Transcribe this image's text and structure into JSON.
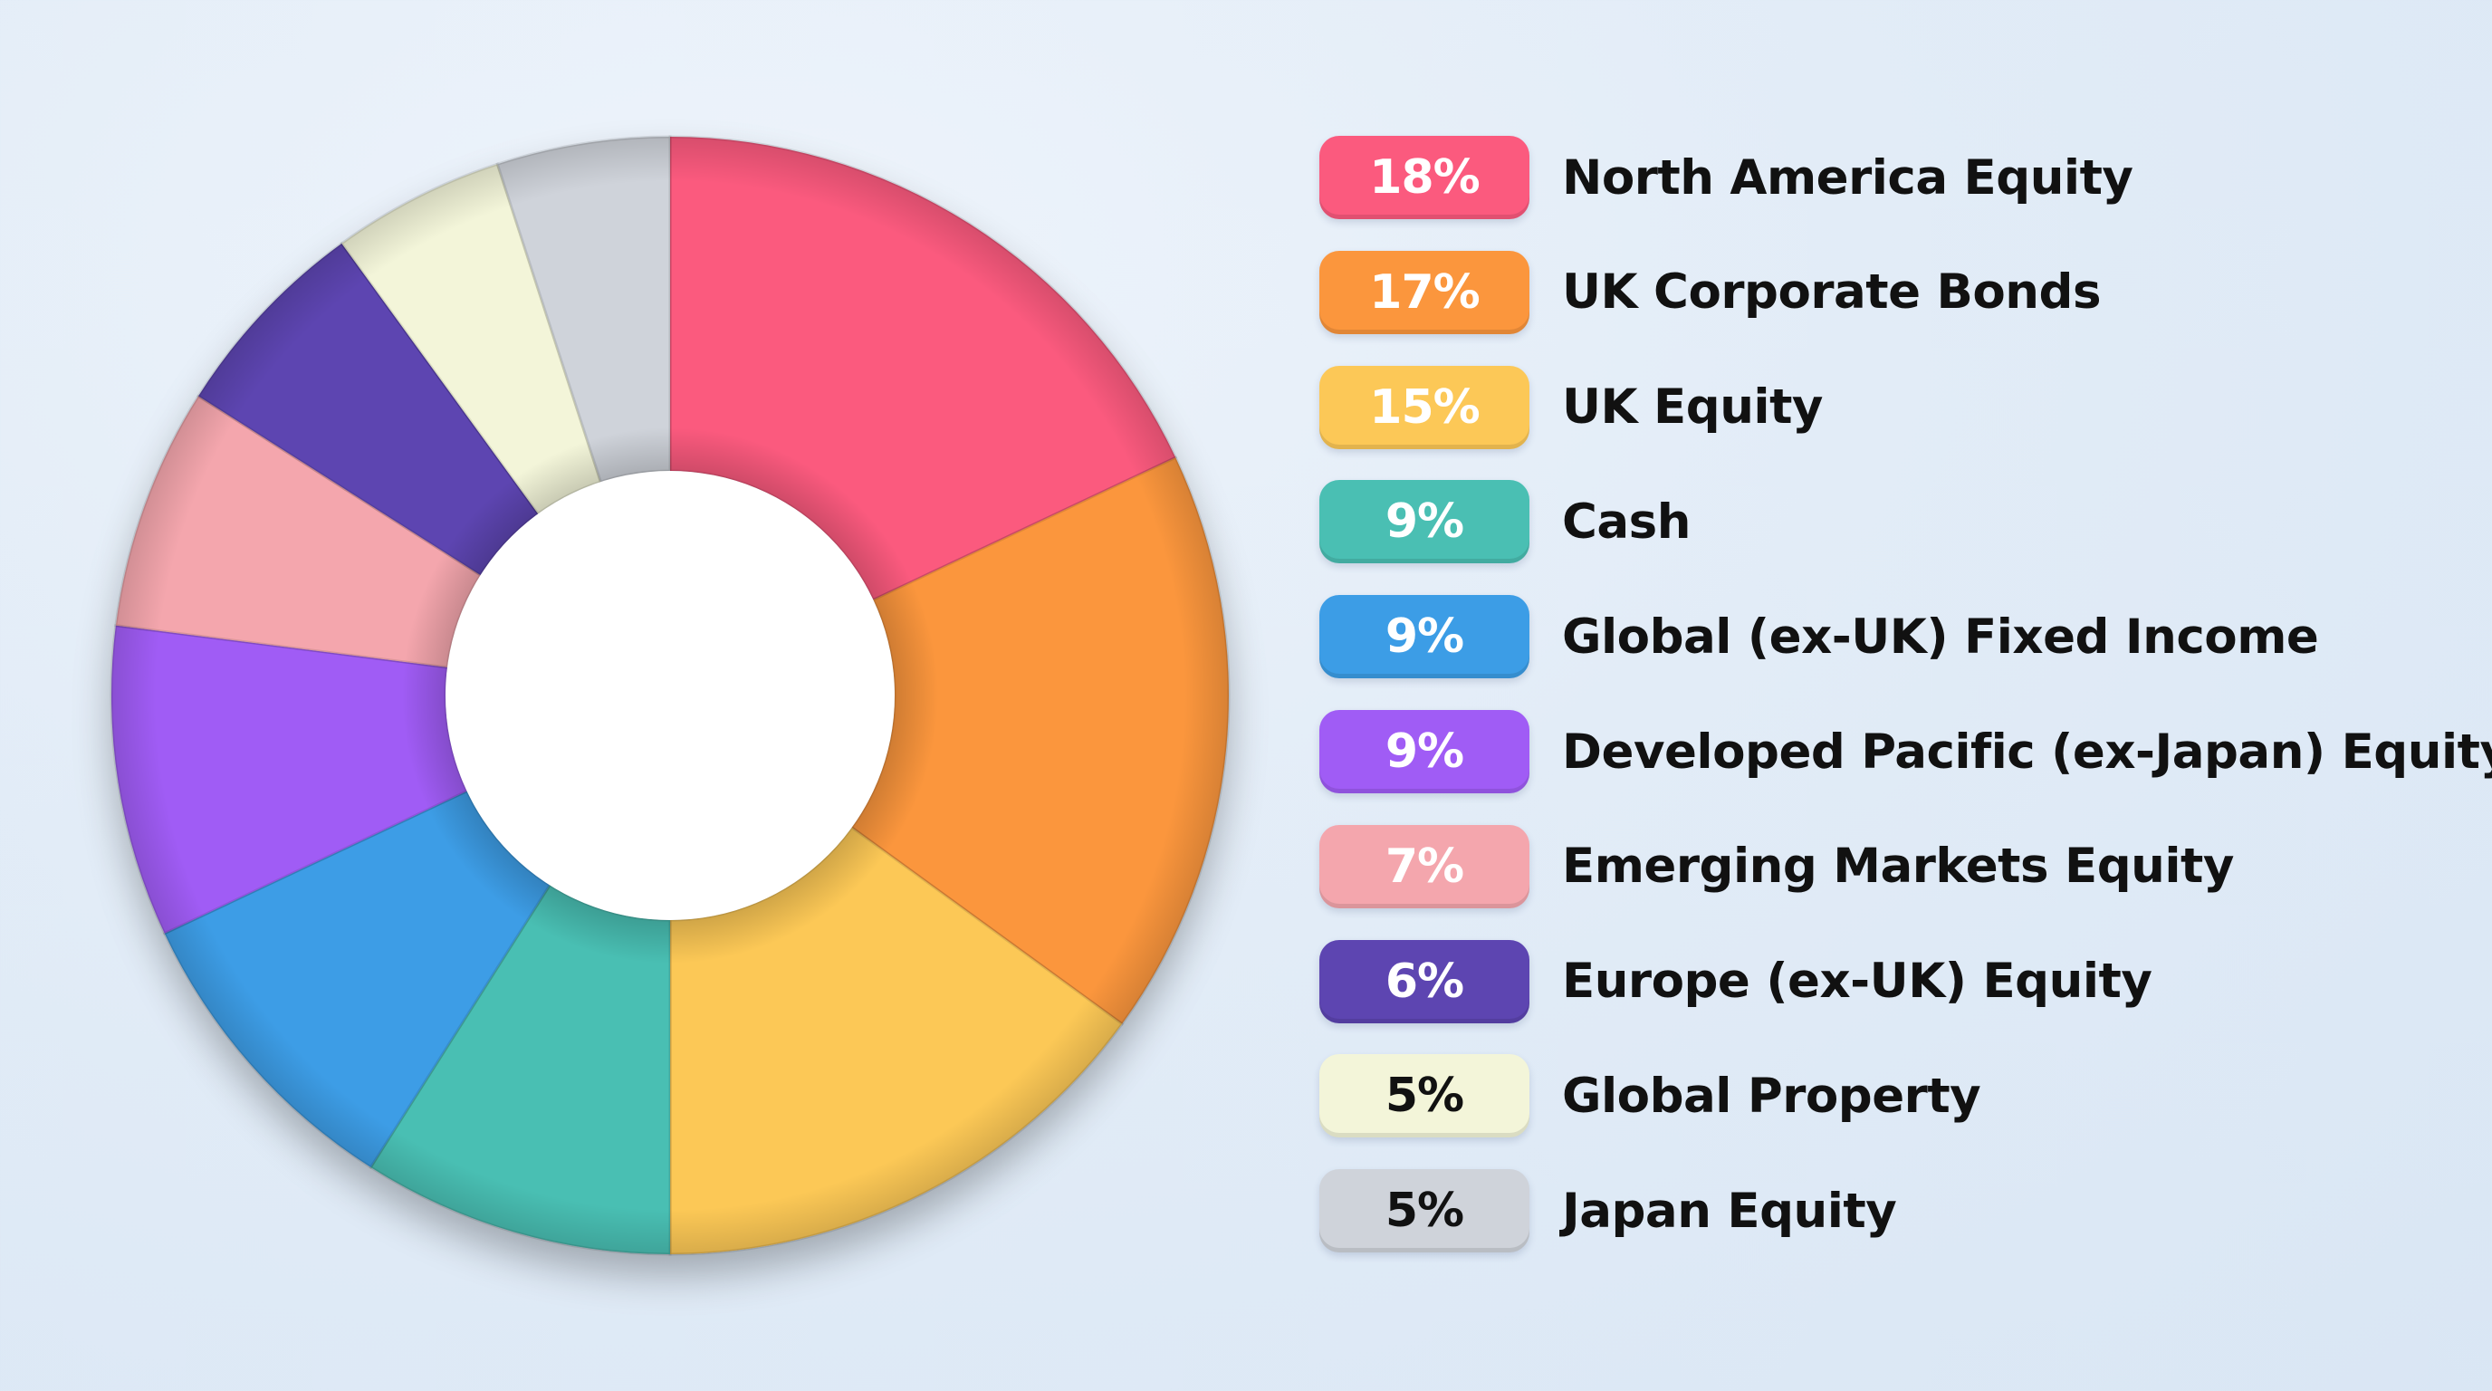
{
  "chart_data": {
    "type": "pie",
    "style": "donut",
    "legend_position": "right",
    "slices": [
      {
        "label": "North America Equity",
        "value": 18,
        "value_label": "18%",
        "color": "#fb5a7e",
        "badge_text_color": "#ffffff"
      },
      {
        "label": "UK Corporate Bonds",
        "value": 17,
        "value_label": "17%",
        "color": "#fb963d",
        "badge_text_color": "#ffffff"
      },
      {
        "label": "UK Equity",
        "value": 15,
        "value_label": "15%",
        "color": "#fcc857",
        "badge_text_color": "#ffffff"
      },
      {
        "label": "Cash",
        "value": 9,
        "value_label": "9%",
        "color": "#4abfb3",
        "badge_text_color": "#ffffff"
      },
      {
        "label": "Global (ex-UK) Fixed Income",
        "value": 9,
        "value_label": "9%",
        "color": "#3c9de6",
        "badge_text_color": "#ffffff"
      },
      {
        "label": "Developed Pacific (ex-Japan) Equity",
        "value": 9,
        "value_label": "9%",
        "color": "#a05cf5",
        "badge_text_color": "#ffffff"
      },
      {
        "label": "Emerging Markets Equity",
        "value": 7,
        "value_label": "7%",
        "color": "#f4a6ad",
        "badge_text_color": "#ffffff"
      },
      {
        "label": "Europe (ex-UK) Equity",
        "value": 6,
        "value_label": "6%",
        "color": "#5d45b1",
        "badge_text_color": "#ffffff"
      },
      {
        "label": "Global Property",
        "value": 5,
        "value_label": "5%",
        "color": "#f3f5d9",
        "badge_text_color": "#111111"
      },
      {
        "label": "Japan Equity",
        "value": 5,
        "value_label": "5%",
        "color": "#cfd3da",
        "badge_text_color": "#111111"
      }
    ]
  }
}
